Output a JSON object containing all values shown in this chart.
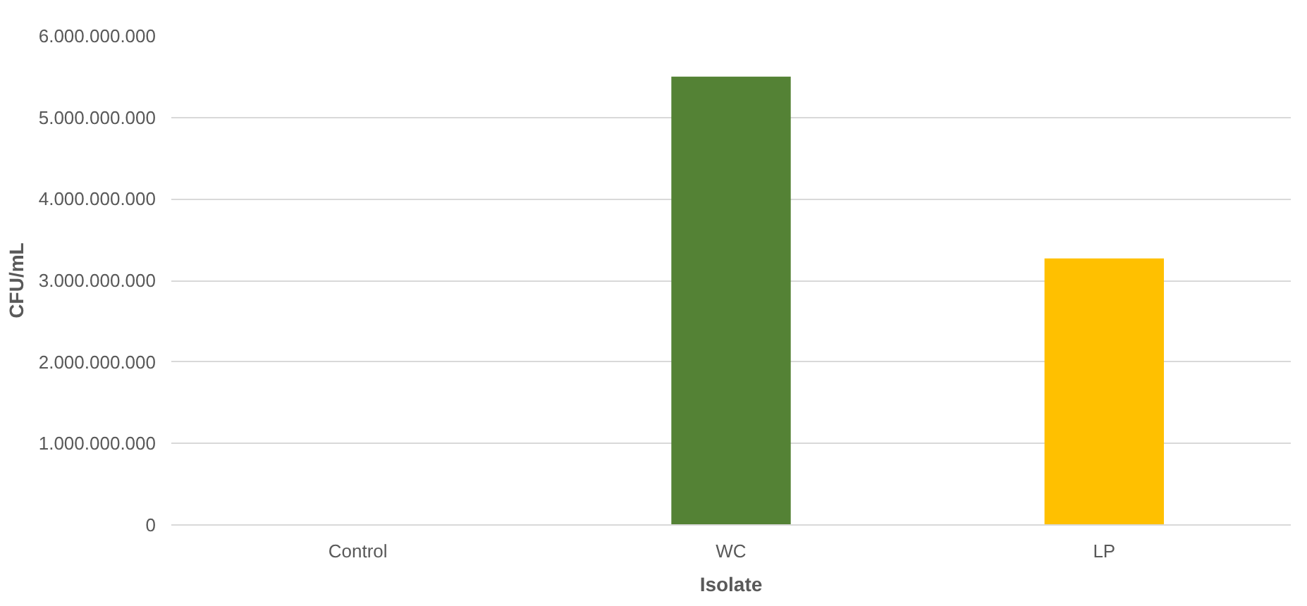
{
  "chart_data": {
    "type": "bar",
    "xlabel": "Isolate",
    "ylabel": "CFU/mL",
    "categories": [
      "Control",
      "WC",
      "LP"
    ],
    "values": [
      0,
      5500000000,
      3270000000
    ],
    "colors": [
      "#548235",
      "#548235",
      "#ffc000"
    ],
    "ylim": [
      0,
      6000000000
    ],
    "yticks": [
      {
        "value": 0,
        "label": "0"
      },
      {
        "value": 1000000000,
        "label": "1.000.000.000"
      },
      {
        "value": 2000000000,
        "label": "2.000.000.000"
      },
      {
        "value": 3000000000,
        "label": "3.000.000.000"
      },
      {
        "value": 4000000000,
        "label": "4.000.000.000"
      },
      {
        "value": 5000000000,
        "label": "5.000.000.000"
      },
      {
        "value": 6000000000,
        "label": "6.000.000.000"
      }
    ],
    "grid": "y"
  }
}
